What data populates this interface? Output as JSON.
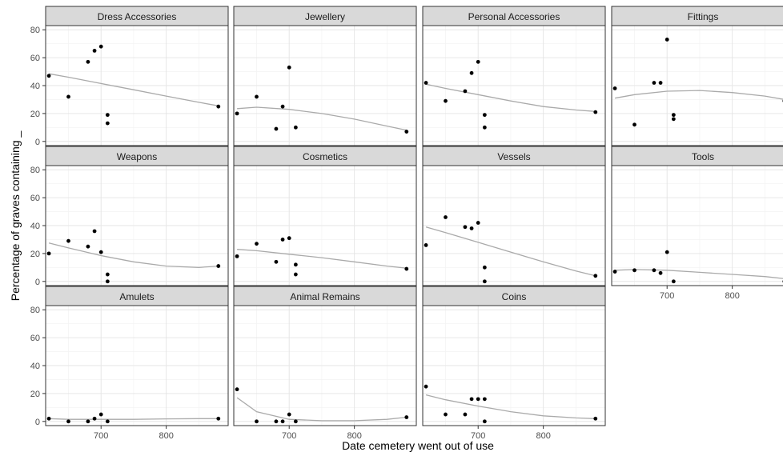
{
  "chart_data": {
    "type": "scatter",
    "layout": "facet_wrap",
    "ncol": 4,
    "xlabel": "Date cemetery went out of use",
    "ylabel": "Percentage of graves containing _",
    "xlim": [
      615,
      895
    ],
    "ylim": [
      -3,
      83
    ],
    "x_ticks": [
      700,
      800
    ],
    "y_ticks": [
      0,
      20,
      40,
      60,
      80
    ],
    "grid": true,
    "panels": [
      {
        "title": "Dress Accessories",
        "points": [
          [
            620,
            47
          ],
          [
            650,
            32
          ],
          [
            680,
            57
          ],
          [
            690,
            65
          ],
          [
            700,
            68
          ],
          [
            710,
            19
          ],
          [
            710,
            13
          ],
          [
            880,
            25
          ]
        ],
        "smooth": [
          [
            620,
            48.5
          ],
          [
            650,
            46
          ],
          [
            700,
            41.5
          ],
          [
            750,
            37
          ],
          [
            800,
            32.5
          ],
          [
            850,
            28
          ],
          [
            880,
            25.5
          ]
        ]
      },
      {
        "title": "Jewellery",
        "points": [
          [
            620,
            20
          ],
          [
            650,
            32
          ],
          [
            680,
            9
          ],
          [
            690,
            25
          ],
          [
            700,
            53
          ],
          [
            710,
            10
          ],
          [
            880,
            7
          ]
        ],
        "smooth": [
          [
            620,
            23.5
          ],
          [
            650,
            24.5
          ],
          [
            700,
            23
          ],
          [
            750,
            20
          ],
          [
            800,
            16
          ],
          [
            850,
            11
          ],
          [
            880,
            8
          ]
        ]
      },
      {
        "title": "Personal Accessories",
        "points": [
          [
            620,
            42
          ],
          [
            650,
            29
          ],
          [
            680,
            36
          ],
          [
            690,
            49
          ],
          [
            700,
            57
          ],
          [
            710,
            19
          ],
          [
            710,
            10
          ],
          [
            880,
            21
          ]
        ],
        "smooth": [
          [
            620,
            41
          ],
          [
            650,
            38
          ],
          [
            700,
            33.5
          ],
          [
            750,
            29
          ],
          [
            800,
            25
          ],
          [
            850,
            22.5
          ],
          [
            880,
            21.5
          ]
        ]
      },
      {
        "title": "Fittings",
        "points": [
          [
            620,
            38
          ],
          [
            650,
            12
          ],
          [
            680,
            42
          ],
          [
            690,
            42
          ],
          [
            700,
            73
          ],
          [
            710,
            19
          ],
          [
            710,
            16
          ],
          [
            880,
            29
          ]
        ],
        "smooth": [
          [
            620,
            31
          ],
          [
            650,
            33.5
          ],
          [
            700,
            36
          ],
          [
            750,
            36.5
          ],
          [
            800,
            35
          ],
          [
            850,
            32.5
          ],
          [
            880,
            30
          ]
        ]
      },
      {
        "title": "Weapons",
        "points": [
          [
            620,
            20
          ],
          [
            650,
            29
          ],
          [
            680,
            25
          ],
          [
            690,
            36
          ],
          [
            700,
            21
          ],
          [
            710,
            5
          ],
          [
            710,
            0
          ],
          [
            880,
            11
          ]
        ],
        "smooth": [
          [
            620,
            27.5
          ],
          [
            650,
            24
          ],
          [
            700,
            18.5
          ],
          [
            750,
            14
          ],
          [
            800,
            11
          ],
          [
            850,
            10
          ],
          [
            880,
            11
          ]
        ]
      },
      {
        "title": "Cosmetics",
        "points": [
          [
            620,
            18
          ],
          [
            650,
            27
          ],
          [
            680,
            14
          ],
          [
            690,
            30
          ],
          [
            700,
            31
          ],
          [
            710,
            12
          ],
          [
            710,
            5
          ],
          [
            880,
            9
          ]
        ],
        "smooth": [
          [
            620,
            23
          ],
          [
            650,
            22
          ],
          [
            700,
            19.5
          ],
          [
            750,
            17
          ],
          [
            800,
            14
          ],
          [
            850,
            11
          ],
          [
            880,
            9.5
          ]
        ]
      },
      {
        "title": "Vessels",
        "points": [
          [
            620,
            26
          ],
          [
            650,
            46
          ],
          [
            680,
            39
          ],
          [
            690,
            38
          ],
          [
            700,
            42
          ],
          [
            710,
            10
          ],
          [
            710,
            0
          ],
          [
            880,
            4
          ]
        ],
        "smooth": [
          [
            620,
            39
          ],
          [
            650,
            35
          ],
          [
            700,
            28
          ],
          [
            750,
            21
          ],
          [
            800,
            14
          ],
          [
            850,
            7.5
          ],
          [
            880,
            4
          ]
        ]
      },
      {
        "title": "Tools",
        "points": [
          [
            620,
            7
          ],
          [
            650,
            8
          ],
          [
            680,
            8
          ],
          [
            690,
            6
          ],
          [
            700,
            21
          ],
          [
            710,
            0
          ],
          [
            880,
            0
          ]
        ],
        "smooth": [
          [
            620,
            8
          ],
          [
            650,
            8.5
          ],
          [
            700,
            8
          ],
          [
            750,
            6.5
          ],
          [
            800,
            5
          ],
          [
            850,
            3.5
          ],
          [
            880,
            2
          ]
        ]
      },
      {
        "title": "Amulets",
        "points": [
          [
            620,
            2
          ],
          [
            650,
            0
          ],
          [
            680,
            0
          ],
          [
            690,
            2
          ],
          [
            700,
            5
          ],
          [
            710,
            0
          ],
          [
            880,
            2
          ]
        ],
        "smooth": [
          [
            620,
            2
          ],
          [
            650,
            1.5
          ],
          [
            700,
            1.5
          ],
          [
            750,
            1.5
          ],
          [
            800,
            1.8
          ],
          [
            850,
            2
          ],
          [
            880,
            2
          ]
        ]
      },
      {
        "title": "Animal Remains",
        "points": [
          [
            620,
            23
          ],
          [
            650,
            0
          ],
          [
            680,
            0
          ],
          [
            690,
            0
          ],
          [
            700,
            5
          ],
          [
            710,
            0
          ],
          [
            880,
            3
          ]
        ],
        "smooth": [
          [
            620,
            17
          ],
          [
            650,
            7
          ],
          [
            700,
            1.5
          ],
          [
            750,
            0.5
          ],
          [
            800,
            0.5
          ],
          [
            850,
            1.5
          ],
          [
            880,
            3
          ]
        ]
      },
      {
        "title": "Coins",
        "points": [
          [
            620,
            25
          ],
          [
            650,
            5
          ],
          [
            680,
            5
          ],
          [
            690,
            16
          ],
          [
            700,
            16
          ],
          [
            710,
            16
          ],
          [
            710,
            0
          ],
          [
            880,
            2
          ]
        ],
        "smooth": [
          [
            620,
            19
          ],
          [
            650,
            15.5
          ],
          [
            700,
            11
          ],
          [
            750,
            7
          ],
          [
            800,
            4
          ],
          [
            850,
            2.5
          ],
          [
            880,
            2
          ]
        ]
      }
    ]
  }
}
